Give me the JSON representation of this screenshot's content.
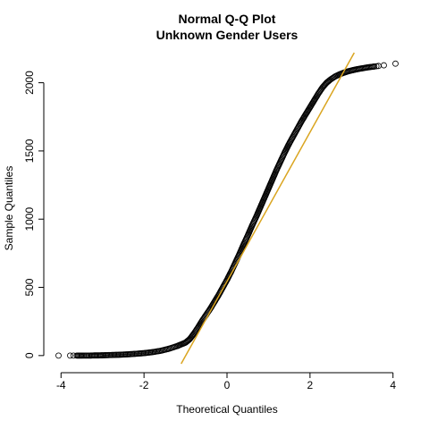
{
  "chart_data": {
    "type": "scatter",
    "title": "Normal Q-Q Plot",
    "subtitle": "Unknown Gender Users",
    "xlabel": "Theoretical Quantiles",
    "ylabel": "Sample Quantiles",
    "xlim": [
      -4.2,
      4.2
    ],
    "ylim": [
      -60,
      2220
    ],
    "x_ticks": [
      -4,
      -2,
      0,
      2,
      4
    ],
    "x_tick_labels": [
      "-4",
      "-2",
      "0",
      "2",
      "4"
    ],
    "y_ticks": [
      0,
      500,
      1000,
      1500,
      2000
    ],
    "y_tick_labels": [
      "0",
      "500",
      "1000",
      "1500",
      "2000"
    ],
    "grid": false,
    "legend": "none",
    "point_color": "#000000",
    "line_color": "#DAA520",
    "reference_line": {
      "intercept": 544,
      "slope": 546.6
    },
    "series": [
      {
        "x": [
          -4.06,
          -3.78,
          -3.7,
          -3.62,
          -3.55,
          -3.48,
          -3.42,
          -3.36,
          -3.3,
          -3.2,
          -3.1,
          -3.0,
          -2.8,
          -2.6,
          -2.4,
          -2.2,
          -2.0,
          -1.8,
          -1.6,
          -1.4,
          -1.2,
          -1.0,
          -0.9,
          -0.8,
          -0.7,
          -0.6,
          -0.5,
          -0.4,
          -0.3,
          -0.2,
          -0.1,
          0.0,
          0.1,
          0.2,
          0.3,
          0.4,
          0.5,
          0.6,
          0.7,
          0.8,
          0.9,
          1.0,
          1.1,
          1.2,
          1.3,
          1.4,
          1.5,
          1.6,
          1.7,
          1.8,
          1.9,
          2.0,
          2.1,
          2.2,
          2.3,
          2.4,
          2.5,
          2.6,
          2.7,
          2.8,
          2.9,
          3.0,
          3.1,
          3.2,
          3.3,
          3.4,
          3.45,
          3.5,
          3.55,
          3.6,
          3.65,
          3.78,
          4.06
        ],
        "y": [
          0,
          0,
          0,
          0,
          0,
          0,
          0,
          0,
          0,
          1,
          1,
          2,
          4,
          6,
          9,
          13,
          18,
          25,
          35,
          50,
          70,
          95,
          120,
          160,
          205,
          255,
          300,
          345,
          395,
          445,
          500,
          555,
          615,
          680,
          745,
          815,
          880,
          950,
          1015,
          1085,
          1155,
          1225,
          1295,
          1365,
          1430,
          1495,
          1555,
          1610,
          1665,
          1720,
          1770,
          1820,
          1870,
          1920,
          1965,
          2000,
          2025,
          2045,
          2060,
          2072,
          2082,
          2090,
          2097,
          2103,
          2108,
          2113,
          2115,
          2117,
          2119,
          2121,
          2123,
          2128,
          2140
        ]
      }
    ]
  }
}
